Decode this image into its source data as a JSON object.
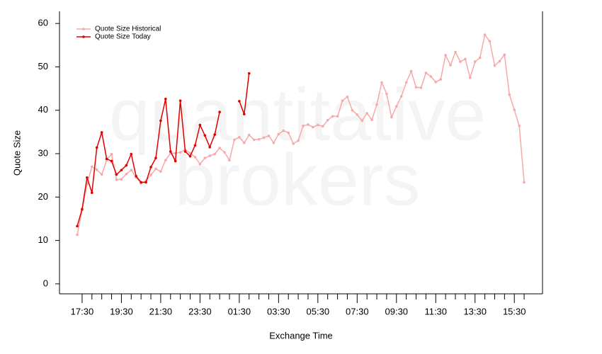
{
  "chart_data": {
    "type": "line",
    "watermark": [
      "quantitative",
      "brokers"
    ],
    "xlabel": "Exchange Time",
    "ylabel": "Quote Size",
    "categories": [
      null,
      "17:30",
      null,
      null,
      null,
      null,
      null,
      null,
      null,
      "19:30",
      null,
      null,
      null,
      null,
      null,
      null,
      null,
      "21:30",
      null,
      null,
      null,
      null,
      null,
      null,
      null,
      "23:30",
      null,
      null,
      null,
      null,
      null,
      null,
      null,
      "01:30",
      null,
      null,
      null,
      null,
      null,
      null,
      null,
      "03:30",
      null,
      null,
      null,
      null,
      null,
      null,
      null,
      "05:30",
      null,
      null,
      null,
      null,
      null,
      null,
      null,
      "07:30",
      null,
      null,
      null,
      null,
      null,
      null,
      null,
      "09:30",
      null,
      null,
      null,
      null,
      null,
      null,
      null,
      "11:30",
      null,
      null,
      null,
      null,
      null,
      null,
      null,
      "13:30",
      null,
      null,
      null,
      null,
      null,
      null,
      null,
      "15:30",
      null,
      null
    ],
    "series": [
      {
        "name": "Quote Size Historical",
        "color": "#f7a8a8",
        "values": [
          11.3,
          17,
          23,
          27,
          26.3,
          25.2,
          28.5,
          29.9,
          24,
          24.1,
          25.3,
          26.2,
          24.5,
          23.2,
          23.7,
          25.1,
          26.5,
          25.9,
          28.5,
          30.1,
          30.1,
          30.3,
          30.9,
          30.1,
          29.2,
          27.6,
          29,
          29.5,
          29.9,
          31.3,
          30.3,
          28.5,
          33.2,
          33.8,
          32.5,
          34.3,
          33.2,
          33.3,
          33.7,
          34.1,
          32.5,
          34.5,
          35.3,
          34.8,
          32.3,
          33,
          36.4,
          36.7,
          36.1,
          36.6,
          36.3,
          37.7,
          38.6,
          38.6,
          42.2,
          43.1,
          40,
          39,
          37.6,
          39.3,
          37.8,
          41.3,
          46.4,
          43.8,
          38.4,
          40.9,
          43.2,
          46.4,
          49,
          45.3,
          45.2,
          48.6,
          47.8,
          46.5,
          47.1,
          52.7,
          50.4,
          53.4,
          51.2,
          51.8,
          47.5,
          51.2,
          52.1,
          57.4,
          55.9,
          50.3,
          51.3,
          52.8,
          43.6,
          40.1,
          36.4,
          23.4
        ]
      },
      {
        "name": "Quote Size Today",
        "color": "#e00000",
        "values": [
          13.3,
          17.2,
          24.5,
          21,
          31.4,
          34.9,
          28.8,
          28.3,
          25.2,
          26.2,
          27.3,
          29.9,
          24.8,
          23.4,
          23.4,
          26.9,
          29,
          37.6,
          42.6,
          30.5,
          28.3,
          42.2,
          30.5,
          29.4,
          31.9,
          36.6,
          34.2,
          31.5,
          34.4,
          39.6,
          null,
          null,
          null,
          42.1,
          39.1,
          48.5,
          null,
          null,
          null,
          null,
          null,
          null,
          null,
          null,
          null,
          null,
          null,
          null,
          null,
          null,
          null,
          null,
          null,
          null,
          null,
          null,
          null,
          null,
          null,
          null,
          null,
          null,
          null,
          null,
          null,
          null,
          null,
          null,
          null,
          null,
          null,
          null,
          null,
          null,
          null,
          null,
          null,
          null,
          null,
          null,
          null,
          null,
          null,
          null,
          null,
          null,
          null,
          null,
          null,
          null,
          null,
          null
        ]
      }
    ],
    "ylim": [
      -2.3,
      62.8
    ],
    "yticks": [
      0,
      10,
      20,
      30,
      40,
      50,
      60
    ],
    "legend": "upper left"
  }
}
